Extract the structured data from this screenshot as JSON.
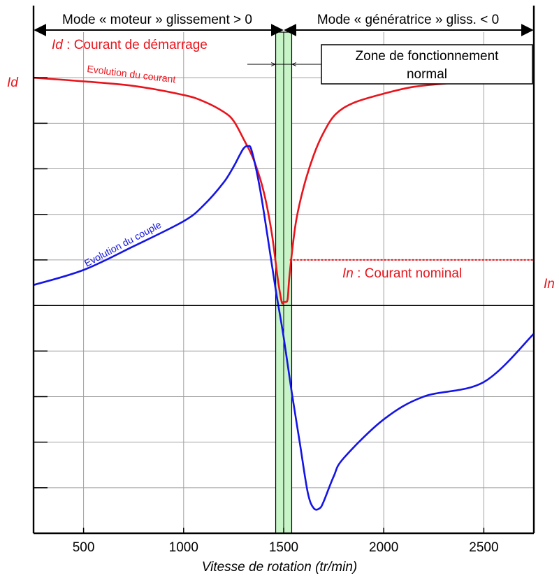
{
  "chart_data": {
    "type": "line",
    "title": "",
    "xlabel": "Vitesse de rotation (tr/min)",
    "ylabel": "",
    "xlim": [
      250,
      2750
    ],
    "ylim": [
      -5,
      6
    ],
    "x_ticks": [
      500,
      1000,
      1500,
      2000,
      2500
    ],
    "x_tick_labels": [
      "500",
      "1000",
      "1500",
      "2000",
      "2500"
    ],
    "y_ticks": [
      -4,
      -3,
      -2,
      -1,
      0,
      1,
      2,
      3,
      4,
      5
    ],
    "grid": true,
    "synchronous_speed": 1500,
    "normal_zone": [
      1460,
      1540
    ],
    "series": [
      {
        "name": "",
        "label": "Evolution du courant",
        "color": "#e8141c",
        "x": [
          250,
          500,
          750,
          1000,
          1100,
          1200,
          1250,
          1300,
          1350,
          1400,
          1440,
          1470,
          1490,
          1500,
          1510,
          1520,
          1530,
          1560,
          1600,
          1650,
          1700,
          1760,
          1850,
          2000,
          2150,
          2330
        ],
        "y": [
          5,
          4.92,
          4.82,
          4.62,
          4.48,
          4.25,
          4.05,
          3.65,
          3.2,
          2.5,
          1.6,
          0.6,
          0.08,
          0.08,
          0.08,
          0.15,
          0.7,
          1.8,
          2.6,
          3.3,
          3.8,
          4.2,
          4.45,
          4.65,
          4.8,
          4.88
        ]
      },
      {
        "name": "",
        "label": "Evolution du couple",
        "color": "#1414e6",
        "x": [
          250,
          500,
          750,
          1000,
          1100,
          1200,
          1250,
          1280,
          1300,
          1320,
          1340,
          1380,
          1420,
          1460,
          1500,
          1540,
          1580,
          1620,
          1650,
          1680,
          1700,
          1750,
          1800,
          2000,
          2200,
          2500,
          2750
        ],
        "y": [
          0.45,
          0.78,
          1.3,
          1.85,
          2.2,
          2.7,
          3.05,
          3.3,
          3.45,
          3.5,
          3.4,
          2.6,
          1.5,
          0.35,
          -0.7,
          -1.9,
          -3.0,
          -4.1,
          -4.45,
          -4.45,
          -4.3,
          -3.75,
          -3.35,
          -2.5,
          -2.0,
          -1.68,
          -0.62
        ]
      },
      {
        "name": "",
        "label": "",
        "color": "#e8141c",
        "style": "dotted",
        "x": [
          1530,
          2750
        ],
        "y": [
          1,
          1
        ]
      }
    ],
    "annotations": {
      "id_left": "Id",
      "id_text_em": "Id",
      "id_text": " : Courant de démarrage",
      "in_right": "In",
      "in_text_em": "In",
      "in_text": " : Courant nominal",
      "moteur": "Mode « moteur » glissement > 0",
      "generatrice": "Mode « génératrice » gliss. < 0",
      "zone_line1": "Zone de fonctionnement",
      "zone_line2": "normal"
    }
  }
}
